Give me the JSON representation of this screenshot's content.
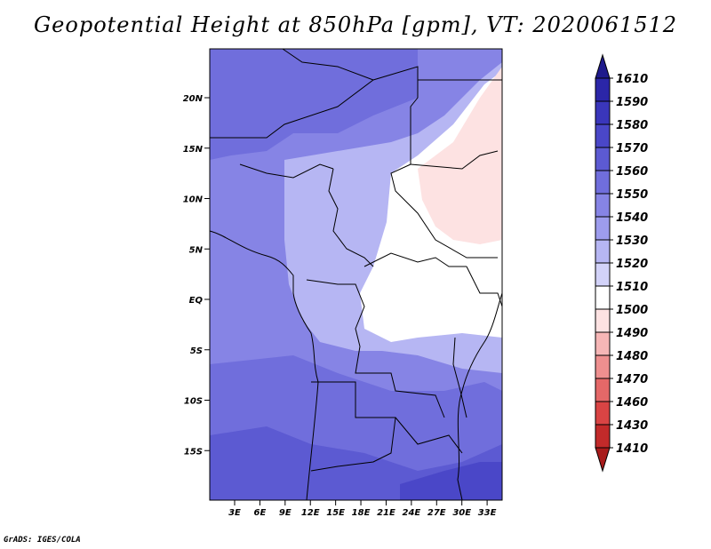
{
  "title": "Geopotential Height at 850hPa [gpm], VT: 2020061512",
  "credit": "GrADS: IGES/COLA",
  "axes": {
    "lat_labels": [
      "20N",
      "15N",
      "10N",
      "5N",
      "EQ",
      "5S",
      "10S",
      "15S"
    ],
    "lat_values": [
      20,
      15,
      10,
      5,
      0,
      -5,
      -10,
      -15
    ],
    "lon_labels": [
      "3E",
      "6E",
      "9E",
      "12E",
      "15E",
      "18E",
      "21E",
      "24E",
      "27E",
      "30E",
      "33E"
    ],
    "lon_values": [
      3,
      6,
      9,
      12,
      15,
      18,
      21,
      24,
      27,
      30,
      33
    ]
  },
  "colorbar": {
    "labels": [
      "1610",
      "1590",
      "1580",
      "1570",
      "1560",
      "1550",
      "1540",
      "1530",
      "1520",
      "1510",
      "1500",
      "1490",
      "1480",
      "1470",
      "1460",
      "1430",
      "1410"
    ],
    "colors": [
      "#1f1a8c",
      "#2b26a8",
      "#3a36bb",
      "#4a47c8",
      "#5c5ad2",
      "#706edc",
      "#8684e5",
      "#9d9ced",
      "#b6b6f3",
      "#d2d2f8",
      "#ffffff",
      "#fde2e2",
      "#f6b6b6",
      "#ee8f8f",
      "#e46868",
      "#d94444",
      "#c22a2a",
      "#a81b1b"
    ]
  },
  "regions": {
    "names": [
      "very-high-south",
      "high-south",
      "mid-south",
      "mid-west",
      "light-central",
      "white-central",
      "pink-northeast"
    ],
    "colors": [
      "#4a47c8",
      "#5c5ad2",
      "#706edc",
      "#8684e5",
      "#b6b6f3",
      "#ffffff",
      "#fde2e2"
    ]
  }
}
